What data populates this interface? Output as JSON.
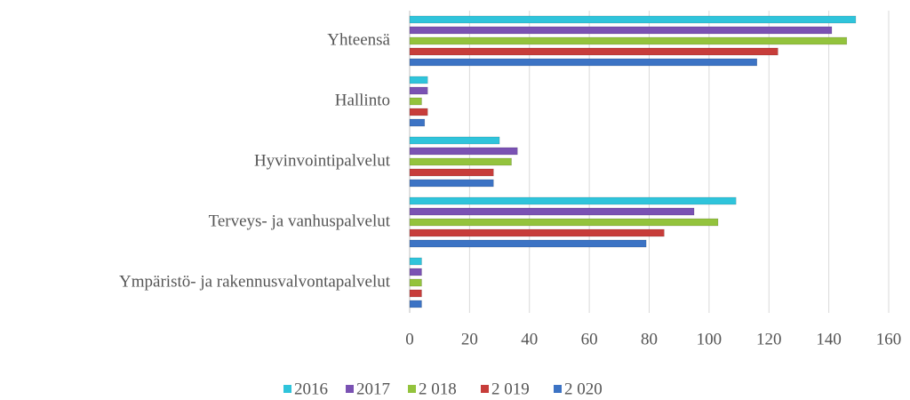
{
  "chart_data": {
    "type": "bar",
    "orientation": "horizontal",
    "categories": [
      "Yhteensä",
      "Hallinto",
      "Hyvinvointipalvelut",
      "Terveys- ja vanhuspalvelut",
      "Ympäristö- ja rakennusvalvontapalvelut"
    ],
    "series": [
      {
        "name": "2016",
        "color": "#2fc4db",
        "values": [
          149,
          6,
          30,
          109,
          4
        ]
      },
      {
        "name": "2017",
        "color": "#7a52b3",
        "values": [
          141,
          6,
          36,
          95,
          4
        ]
      },
      {
        "name": "2 018",
        "color": "#93c33d",
        "values": [
          146,
          4,
          34,
          103,
          4
        ]
      },
      {
        "name": "2 019",
        "color": "#c73d3a",
        "values": [
          123,
          6,
          28,
          85,
          4
        ]
      },
      {
        "name": "2 020",
        "color": "#3c73c4",
        "values": [
          116,
          5,
          28,
          79,
          4
        ]
      }
    ],
    "xlim": [
      0,
      160
    ],
    "xticks": [
      0,
      20,
      40,
      60,
      80,
      100,
      120,
      140,
      160
    ],
    "grid": true,
    "legend": "bottom"
  }
}
